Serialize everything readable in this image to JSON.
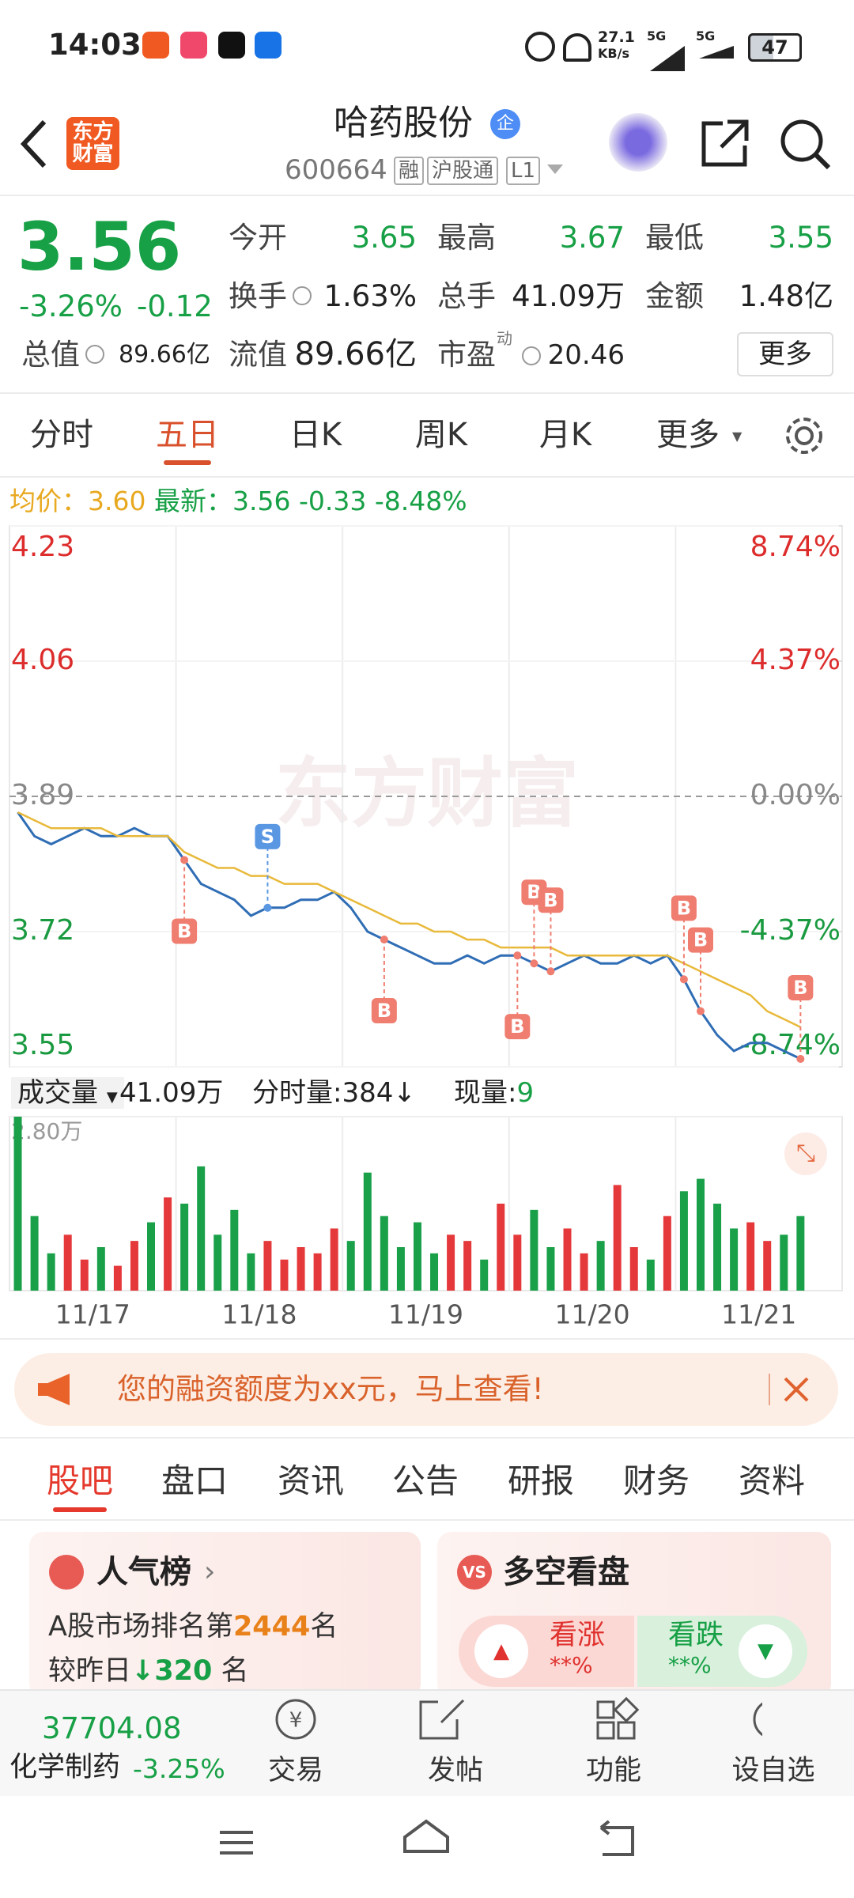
{
  "status_bar": {
    "time": "14:03",
    "net_speed": "27.1",
    "net_unit": "KB/s",
    "network": [
      "5G",
      "5G"
    ],
    "battery": "47"
  },
  "header": {
    "logo": [
      "东方",
      "财富"
    ],
    "title": "哈药股份",
    "badge": "企",
    "code": "600664",
    "tags": [
      "融",
      "沪股通",
      "L1"
    ]
  },
  "quote": {
    "price": "3.56",
    "change_pct": "-3.26%",
    "change": "-0.12",
    "fields": [
      {
        "label": "今开",
        "value": "3.65"
      },
      {
        "label": "最高",
        "value": "3.67"
      },
      {
        "label": "最低",
        "value": "3.55"
      },
      {
        "label": "换手",
        "value": "1.63%"
      },
      {
        "label": "总手",
        "value": "41.09万"
      },
      {
        "label": "金额",
        "value": "1.48亿"
      },
      {
        "label": "流值",
        "value": "89.66亿"
      },
      {
        "label": "市盈",
        "value": "20.46",
        "superscript": "动"
      }
    ],
    "market_cap": {
      "label": "总值",
      "value": "89.66亿"
    },
    "more": "更多"
  },
  "chart_tabs": {
    "items": [
      "分时",
      "五日",
      "日K",
      "周K",
      "月K",
      "更多"
    ],
    "active": 1
  },
  "summary": {
    "avg_label": "均价：",
    "avg": "3.60",
    "latest_label": "最新：",
    "latest": "3.56",
    "change": "-0.33",
    "change_pct": "-8.48%"
  },
  "intraday_chart": {
    "type": "line",
    "watermark": "东方财富",
    "ylim": [
      3.55,
      4.23
    ],
    "yticks": [
      4.23,
      4.06,
      3.89,
      3.72,
      3.55
    ],
    "y2lim": [
      -8.74,
      8.74
    ],
    "y2ticks": [
      {
        "value": 8.74,
        "label": "8.74%"
      },
      {
        "value": 4.37,
        "label": "4.37%"
      },
      {
        "value": 0,
        "label": "0.00%"
      },
      {
        "value": -4.37,
        "label": "-4.37%"
      },
      {
        "value": -8.74,
        "label": "-8.74%"
      }
    ],
    "categories": [
      "11/17",
      "11/18",
      "11/19",
      "11/20",
      "11/21"
    ],
    "series": [
      {
        "color": "#2f6db5",
        "values": [
          3.87,
          3.84,
          3.83,
          3.84,
          3.85,
          3.84,
          3.84,
          3.85,
          3.84,
          3.84,
          3.81,
          3.78,
          3.77,
          3.76,
          3.74,
          3.75,
          3.75,
          3.76,
          3.76,
          3.77,
          3.75,
          3.72,
          3.71,
          3.7,
          3.69,
          3.68,
          3.68,
          3.69,
          3.68,
          3.69,
          3.69,
          3.68,
          3.67,
          3.68,
          3.69,
          3.68,
          3.68,
          3.69,
          3.68,
          3.69,
          3.66,
          3.62,
          3.59,
          3.57,
          3.58,
          3.58,
          3.57,
          3.56
        ]
      },
      {
        "color": "#e8b93a",
        "values": [
          3.87,
          3.86,
          3.85,
          3.85,
          3.85,
          3.85,
          3.84,
          3.84,
          3.84,
          3.84,
          3.82,
          3.81,
          3.8,
          3.8,
          3.79,
          3.79,
          3.78,
          3.78,
          3.78,
          3.77,
          3.76,
          3.75,
          3.74,
          3.73,
          3.73,
          3.72,
          3.72,
          3.71,
          3.71,
          3.7,
          3.7,
          3.7,
          3.7,
          3.69,
          3.69,
          3.69,
          3.69,
          3.69,
          3.69,
          3.69,
          3.68,
          3.67,
          3.66,
          3.65,
          3.64,
          3.62,
          3.61,
          3.6
        ]
      }
    ],
    "markers": [
      {
        "label": "B",
        "index": 10,
        "side": "below",
        "color": "#ef7d70"
      },
      {
        "label": "S",
        "index": 15,
        "side": "above",
        "color": "#5a97e3"
      },
      {
        "label": "B",
        "index": 22,
        "side": "below",
        "color": "#ef7d70"
      },
      {
        "label": "B",
        "index": 30,
        "side": "below",
        "color": "#ef7d70"
      },
      {
        "label": "B",
        "index": 31,
        "side": "above",
        "color": "#ef7d70"
      },
      {
        "label": "B",
        "index": 32,
        "side": "above",
        "color": "#ef7d70"
      },
      {
        "label": "B",
        "index": 40,
        "side": "above",
        "color": "#ef7d70"
      },
      {
        "label": "B",
        "index": 41,
        "side": "above",
        "color": "#ef7d70"
      },
      {
        "label": "B",
        "index": 47,
        "side": "above",
        "color": "#ef7d70"
      }
    ]
  },
  "volume_chart": {
    "type": "bar",
    "label": "成交量",
    "total": "41.09万",
    "tick_volume": "分时量:384↓",
    "current_label": "现量:",
    "current": "9",
    "ylim": [
      0,
      2.8
    ],
    "yticks": [
      {
        "value": 2.8,
        "label": "2.80万"
      }
    ],
    "up_color": "#e5383b",
    "down_color": "#19a049",
    "values": [
      2.8,
      1.2,
      0.6,
      0.9,
      0.5,
      0.7,
      0.4,
      0.8,
      1.1,
      1.5,
      1.4,
      2.0,
      0.9,
      1.3,
      0.6,
      0.8,
      0.5,
      0.7,
      0.6,
      1.0,
      0.8,
      1.9,
      1.2,
      0.7,
      1.1,
      0.6,
      0.9,
      0.8,
      0.5,
      1.4,
      0.9,
      1.3,
      0.7,
      1.0,
      0.6,
      0.8,
      1.7,
      0.7,
      0.5,
      1.2,
      1.6,
      1.8,
      1.4,
      1.0,
      1.1,
      0.8,
      0.9,
      1.2
    ]
  },
  "banner": {
    "text": "您的融资额度为xx元，马上查看!"
  },
  "section_tabs": {
    "items": [
      "股吧",
      "盘口",
      "资讯",
      "公告",
      "研报",
      "财务",
      "资料"
    ],
    "active": 0
  },
  "popularity": {
    "title": "人气榜",
    "rank_prefix": "A股市场排名第",
    "rank": "2444",
    "rank_suffix": "名",
    "change_prefix": "较昨日",
    "change": "320",
    "change_suffix": "名"
  },
  "bull_bear": {
    "icon": "VS",
    "title": "多空看盘",
    "up_label": "看涨",
    "up_value": "**%",
    "down_label": "看跌",
    "down_value": "**%"
  },
  "bottom_bar": {
    "index": "37704.08",
    "sector": "化学制药",
    "sector_change": "-3.25%",
    "actions": [
      "交易",
      "发帖",
      "功能",
      "设自选"
    ]
  }
}
